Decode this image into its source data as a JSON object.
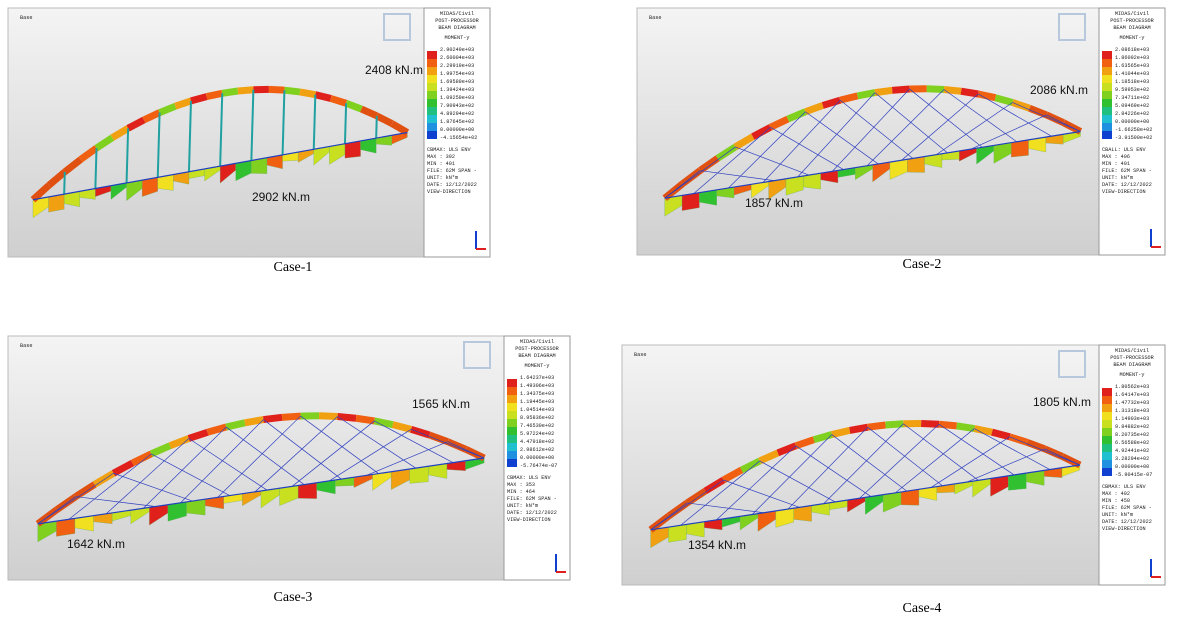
{
  "panels": [
    {
      "caption": "Case-1",
      "toolbar": "Base",
      "annotations": [
        "2408 kN.m",
        "2902 kN.m"
      ],
      "legend": {
        "header": [
          "MIDAS/Civil",
          "POST-PROCESSOR",
          "BEAM DIAGRAM",
          "MOMENT-y"
        ],
        "values": [
          "2.90249e+03",
          "2.60004e+03",
          "2.29919e+03",
          "1.99754e+03",
          "1.69589e+03",
          "1.39424e+03",
          "1.09259e+03",
          "7.90943e+02",
          "4.89294e+02",
          "1.87645e+02",
          "0.00000e+00",
          "-4.15654e+02"
        ],
        "footer": [
          "CBMAX: ULS ENV",
          "MAX : 392",
          "MIN : 401",
          "FILE: 62M SPAN -",
          "UNIT: kN*m",
          "DATE: 12/12/2022",
          "VIEW-DIRECTION"
        ]
      }
    },
    {
      "caption": "Case-2",
      "toolbar": "Base",
      "annotations": [
        "2086 kN.m",
        "1857 kN.m"
      ],
      "legend": {
        "header": [
          "MIDAS/Civil",
          "POST-PROCESSOR",
          "BEAM DIAGRAM",
          "MOMENT-y"
        ],
        "values": [
          "2.08618e+03",
          "1.86092e+03",
          "1.63565e+03",
          "1.41044e+03",
          "1.18518e+03",
          "9.59953e+02",
          "7.34711e+02",
          "5.09469e+02",
          "2.84226e+02",
          "0.00000e+00",
          "-1.66258e+02",
          "-3.91500e+02"
        ],
        "footer": [
          "CBALL: ULS ENV",
          "MAX : 406",
          "MIN : 401",
          "FILE: 62M SPAN -",
          "UNIT: kN*m",
          "DATE: 12/12/2022",
          "VIEW-DIRECTION"
        ]
      }
    },
    {
      "caption": "Case-3",
      "toolbar": "Base",
      "annotations": [
        "1565 kN.m",
        "1642 kN.m"
      ],
      "legend": {
        "header": [
          "MIDAS/Civil",
          "POST-PROCESSOR",
          "BEAM DIAGRAM",
          "MOMENT-y"
        ],
        "values": [
          "1.64237e+03",
          "1.49306e+03",
          "1.34375e+03",
          "1.19445e+03",
          "1.04514e+03",
          "8.95836e+02",
          "7.46530e+02",
          "5.97224e+02",
          "4.47918e+02",
          "2.98612e+02",
          "0.00000e+00",
          "-5.76474e-07"
        ],
        "footer": [
          "CBMAX: ULS ENV",
          "MAX : 353",
          "MIN : 464",
          "FILE: 62M SPAN -",
          "UNIT: kN*m",
          "DATE: 12/12/2022",
          "VIEW-DIRECTION"
        ]
      }
    },
    {
      "caption": "Case-4",
      "toolbar": "Base",
      "annotations": [
        "1805 kN.m",
        "1354 kN.m"
      ],
      "legend": {
        "header": [
          "MIDAS/Civil",
          "POST-PROCESSOR",
          "BEAM DIAGRAM",
          "MOMENT-y"
        ],
        "values": [
          "1.80562e+03",
          "1.64147e+03",
          "1.47732e+03",
          "1.31318e+03",
          "1.14903e+03",
          "9.84882e+02",
          "8.20735e+02",
          "6.56588e+02",
          "4.92441e+02",
          "3.28294e+02",
          "0.00000e+00",
          "-5.90415e-07"
        ],
        "footer": [
          "CBMAX: ULS ENV",
          "MAX : 402",
          "MIN : 450",
          "FILE: 62M SPAN -",
          "UNIT: kN*m",
          "DATE: 12/12/2022",
          "VIEW-DIRECTION"
        ]
      }
    }
  ]
}
